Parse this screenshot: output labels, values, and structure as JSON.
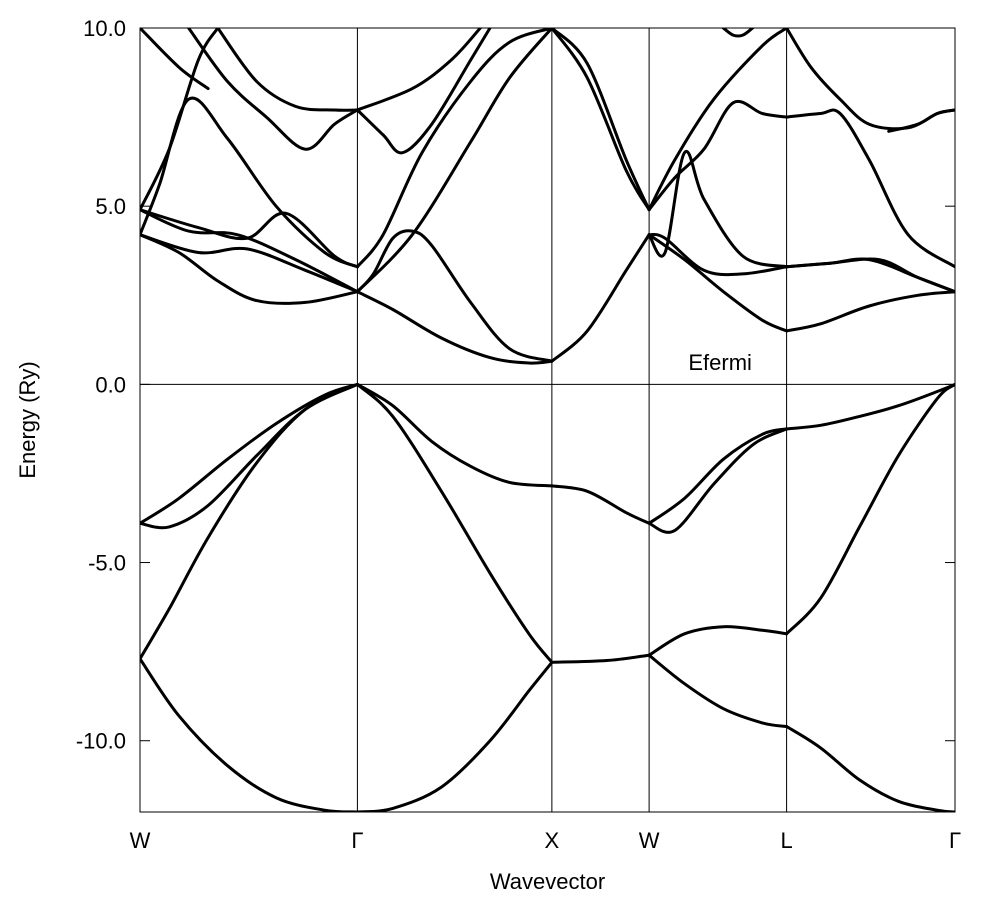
{
  "chart_data": {
    "type": "line",
    "title": "",
    "xlabel": "Wavevector",
    "ylabel": "Energy (Ry)",
    "ylim": [
      -12.0,
      10.0
    ],
    "yticks": [
      10.0,
      5.0,
      0.0,
      -5.0,
      -10.0
    ],
    "ytick_labels": [
      "10.0",
      "5.0",
      "0.0",
      "-5.0",
      "-10.0"
    ],
    "kpoints": [
      {
        "label": "W",
        "x": 0.0
      },
      {
        "label": "Γ",
        "x": 1.118
      },
      {
        "label": "X",
        "x": 2.118
      },
      {
        "label": "W",
        "x": 2.618
      },
      {
        "label": "L",
        "x": 3.325
      },
      {
        "label": "Γ",
        "x": 4.191
      }
    ],
    "annotation": {
      "text": "Efermi",
      "x": 2.82,
      "y": 0.4
    },
    "fermi_level": 0.0,
    "grid": false,
    "line_color": "#000000",
    "bands": [
      {
        "x": [
          0.0,
          0.15,
          0.35,
          0.6,
          0.85,
          1.118
        ],
        "y": [
          -7.7,
          -6.3,
          -4.3,
          -2.2,
          -0.7,
          0.0
        ]
      },
      {
        "x": [
          0.0,
          0.2,
          0.45,
          0.7,
          0.95,
          1.118
        ],
        "y": [
          -7.7,
          -9.3,
          -10.7,
          -11.6,
          -11.95,
          -12.0
        ]
      },
      {
        "x": [
          1.118,
          1.3,
          1.55,
          1.8,
          2.0,
          2.118
        ],
        "y": [
          -12.0,
          -11.9,
          -11.3,
          -10.0,
          -8.6,
          -7.8
        ]
      },
      {
        "x": [
          1.118,
          1.3,
          1.55,
          1.8,
          2.0,
          2.118
        ],
        "y": [
          0.0,
          -0.9,
          -3.0,
          -5.3,
          -7.0,
          -7.8
        ]
      },
      {
        "x": [
          1.118,
          1.3,
          1.5,
          1.7,
          1.9,
          2.118
        ],
        "y": [
          0.0,
          -0.6,
          -1.6,
          -2.3,
          -2.75,
          -2.85
        ]
      },
      {
        "x": [
          0.0,
          0.15,
          0.35,
          0.6,
          0.85,
          1.118
        ],
        "y": [
          -3.9,
          -4.0,
          -3.4,
          -2.0,
          -0.7,
          0.0
        ]
      },
      {
        "x": [
          0.0,
          0.2,
          0.45,
          0.7,
          0.95,
          1.118
        ],
        "y": [
          -3.9,
          -3.2,
          -2.1,
          -1.1,
          -0.3,
          0.0
        ]
      },
      {
        "x": [
          2.118,
          2.3,
          2.5,
          2.618
        ],
        "y": [
          -2.85,
          -3.0,
          -3.6,
          -3.9
        ]
      },
      {
        "x": [
          2.118,
          2.4,
          2.618
        ],
        "y": [
          -7.8,
          -7.75,
          -7.6
        ]
      },
      {
        "x": [
          2.618,
          2.75,
          2.95,
          3.15,
          3.325
        ],
        "y": [
          -3.9,
          -4.1,
          -2.8,
          -1.7,
          -1.25
        ]
      },
      {
        "x": [
          2.618,
          2.8,
          3.0,
          3.2,
          3.325
        ],
        "y": [
          -3.9,
          -3.2,
          -2.1,
          -1.4,
          -1.25
        ]
      },
      {
        "x": [
          2.618,
          2.8,
          3.0,
          3.2,
          3.325
        ],
        "y": [
          -7.6,
          -7.0,
          -6.8,
          -6.9,
          -7.0
        ]
      },
      {
        "x": [
          2.618,
          2.8,
          3.0,
          3.2,
          3.325
        ],
        "y": [
          -7.6,
          -8.4,
          -9.1,
          -9.5,
          -9.6
        ]
      },
      {
        "x": [
          3.325,
          3.5,
          3.7,
          3.9,
          4.1,
          4.191
        ],
        "y": [
          -9.6,
          -10.2,
          -11.1,
          -11.7,
          -11.95,
          -12.0
        ]
      },
      {
        "x": [
          3.325,
          3.5,
          3.7,
          3.9,
          4.1,
          4.191
        ],
        "y": [
          -7.0,
          -6.0,
          -4.0,
          -2.0,
          -0.4,
          0.0
        ]
      },
      {
        "x": [
          3.325,
          3.5,
          3.7,
          3.9,
          4.1,
          4.191
        ],
        "y": [
          -1.25,
          -1.15,
          -0.9,
          -0.6,
          -0.2,
          0.0
        ]
      },
      {
        "x": [
          1.118,
          1.3,
          1.55,
          1.8,
          2.0,
          2.118
        ],
        "y": [
          2.6,
          2.1,
          1.3,
          0.75,
          0.6,
          0.65
        ]
      },
      {
        "x": [
          0.0,
          0.2,
          0.4,
          0.6,
          0.85,
          1.118
        ],
        "y": [
          4.2,
          3.7,
          2.9,
          2.35,
          2.3,
          2.6
        ]
      },
      {
        "x": [
          0.0,
          0.3,
          0.55,
          0.85,
          1.118
        ],
        "y": [
          4.2,
          3.7,
          3.8,
          3.2,
          2.6
        ]
      },
      {
        "x": [
          0.0,
          0.25,
          0.5,
          0.8,
          1.118
        ],
        "y": [
          4.9,
          4.3,
          4.2,
          3.5,
          2.6
        ]
      },
      {
        "x": [
          1.118,
          1.2,
          1.3,
          1.4,
          1.5,
          1.7,
          1.9,
          2.118
        ],
        "y": [
          2.6,
          3.1,
          4.1,
          4.3,
          3.9,
          2.3,
          1.0,
          0.65
        ]
      },
      {
        "x": [
          1.118,
          1.4,
          1.7,
          1.9,
          2.118
        ],
        "y": [
          2.6,
          4.2,
          6.8,
          8.6,
          10.0
        ]
      },
      {
        "x": [
          0.0,
          0.3,
          0.55,
          0.75,
          1.0,
          1.118
        ],
        "y": [
          4.9,
          4.4,
          4.1,
          4.8,
          3.6,
          3.3
        ]
      },
      {
        "x": [
          1.118,
          1.25,
          1.45,
          1.7,
          1.9,
          2.118
        ],
        "y": [
          3.3,
          4.2,
          6.5,
          8.5,
          9.6,
          10.0
        ]
      },
      {
        "x": [
          0.0,
          0.1,
          0.25,
          0.45,
          0.7,
          0.95,
          1.118
        ],
        "y": [
          4.2,
          5.6,
          8.0,
          6.9,
          5.0,
          3.7,
          3.3
        ]
      },
      {
        "x": [
          0.0,
          0.15,
          0.3,
          0.4
        ],
        "y": [
          4.9,
          6.6,
          9.1,
          10.0
        ]
      },
      {
        "x": [
          0.0,
          0.2,
          0.35
        ],
        "y": [
          10.0,
          8.9,
          8.3
        ]
      },
      {
        "x": [
          0.25,
          0.45,
          0.65,
          0.85,
          1.0,
          1.118
        ],
        "y": [
          10.0,
          8.5,
          7.5,
          6.6,
          7.3,
          7.7
        ]
      },
      {
        "x": [
          0.4,
          0.6,
          0.8,
          1.0,
          1.118
        ],
        "y": [
          10.0,
          8.5,
          7.8,
          7.7,
          7.7
        ]
      },
      {
        "x": [
          1.118,
          1.25,
          1.35,
          1.5,
          1.7,
          1.8
        ],
        "y": [
          7.7,
          7.0,
          6.5,
          7.3,
          9.1,
          10.0
        ]
      },
      {
        "x": [
          1.118,
          1.4,
          1.6,
          1.75
        ],
        "y": [
          7.7,
          8.3,
          9.1,
          10.0
        ]
      },
      {
        "x": [
          2.118,
          2.3,
          2.5,
          2.618
        ],
        "y": [
          10.0,
          8.6,
          6.0,
          4.9
        ]
      },
      {
        "x": [
          2.118,
          2.3,
          2.5,
          2.618
        ],
        "y": [
          10.0,
          9.0,
          6.3,
          4.9
        ]
      },
      {
        "x": [
          2.118,
          2.3,
          2.5,
          2.618
        ],
        "y": [
          0.65,
          1.5,
          3.2,
          4.2
        ]
      },
      {
        "x": [
          2.618,
          2.7,
          2.9,
          3.1,
          3.325
        ],
        "y": [
          4.2,
          4.1,
          3.2,
          3.1,
          3.3
        ]
      },
      {
        "x": [
          2.618,
          2.8,
          3.0,
          3.2,
          3.325
        ],
        "y": [
          4.2,
          3.5,
          2.6,
          1.8,
          1.5
        ]
      },
      {
        "x": [
          2.618,
          2.75,
          2.9,
          3.05,
          3.2,
          3.325
        ],
        "y": [
          4.9,
          5.8,
          6.6,
          7.9,
          7.6,
          7.5
        ]
      },
      {
        "x": [
          2.618,
          2.75,
          2.95,
          3.2,
          3.325
        ],
        "y": [
          4.9,
          6.3,
          8.0,
          9.5,
          10.0
        ]
      },
      {
        "x": [
          2.618,
          2.7,
          2.8,
          2.9,
          3.1,
          3.325
        ],
        "y": [
          4.2,
          3.7,
          6.5,
          5.2,
          3.6,
          3.3
        ]
      },
      {
        "x": [
          3.325,
          3.55,
          3.8,
          4.0,
          4.191
        ],
        "y": [
          3.3,
          3.4,
          3.5,
          3.0,
          2.6
        ]
      },
      {
        "x": [
          3.325,
          3.5,
          3.75,
          4.0,
          4.191
        ],
        "y": [
          1.5,
          1.7,
          2.2,
          2.5,
          2.6
        ]
      },
      {
        "x": [
          3.325,
          3.55,
          3.75,
          4.0,
          4.191
        ],
        "y": [
          3.3,
          3.4,
          3.5,
          3.0,
          2.6
        ]
      },
      {
        "x": [
          3.325,
          3.5,
          3.6,
          3.75,
          3.95,
          4.191
        ],
        "y": [
          7.5,
          7.6,
          7.6,
          6.3,
          4.2,
          3.3
        ]
      },
      {
        "x": [
          3.325,
          3.45,
          3.6,
          3.75,
          3.95,
          4.1,
          4.191
        ],
        "y": [
          10.0,
          8.9,
          8.0,
          7.3,
          7.2,
          7.6,
          7.7
        ]
      },
      {
        "x": [
          3.85,
          4.0,
          4.1,
          4.191
        ],
        "y": [
          7.1,
          7.3,
          7.6,
          7.7
        ]
      },
      {
        "x": [
          3.0,
          3.05,
          3.1,
          3.15
        ],
        "y": [
          10.0,
          9.8,
          9.8,
          10.0
        ]
      }
    ]
  }
}
